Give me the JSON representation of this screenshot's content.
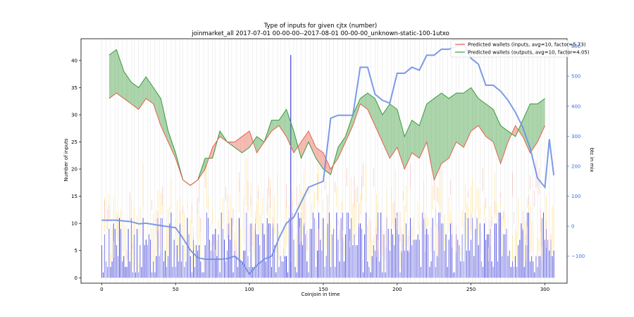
{
  "chart_data": {
    "type": "line",
    "title": "Type of inputs for given cjtx (number)",
    "subtitle": "joinmarket_all 2017-07-01 00-00-00--2017-08-01 00-00-00_unknown-static-100-1utxo",
    "xlabel": "Coinjoin in time",
    "ylabel": "Number of inputs",
    "ylabel_right": "btc in mix",
    "xlim": [
      -14,
      315
    ],
    "ylim": [
      -1,
      44
    ],
    "ylim_right": [
      -190,
      625
    ],
    "x_ticks": [
      0,
      50,
      100,
      150,
      200,
      250,
      300
    ],
    "y_ticks": [
      0,
      5,
      10,
      15,
      20,
      25,
      30,
      35,
      40
    ],
    "y_ticks_right": [
      -100,
      0,
      100,
      200,
      300,
      400,
      500,
      600
    ],
    "y_ticks_right_labels": [
      "−100",
      "0",
      "100",
      "200",
      "300",
      "400",
      "500",
      "600"
    ],
    "right_axis_color": "#4169e1",
    "grid": "vertical lines at selected coinjoins",
    "legend_position": "top-right",
    "series": [
      {
        "name": "Predicted wallets (inputs, avg=10, factor=5.73)",
        "color": "#e8604c",
        "x": [
          5,
          10,
          15,
          20,
          25,
          30,
          35,
          40,
          45,
          50,
          55,
          60,
          65,
          70,
          75,
          80,
          85,
          90,
          95,
          100,
          105,
          110,
          115,
          120,
          125,
          130,
          135,
          140,
          145,
          150,
          155,
          160,
          165,
          170,
          175,
          180,
          185,
          190,
          195,
          200,
          205,
          210,
          215,
          220,
          225,
          230,
          235,
          240,
          245,
          250,
          255,
          260,
          265,
          270,
          275,
          280,
          285,
          290,
          295,
          300
        ],
        "values": [
          33,
          34,
          33,
          32,
          31,
          33,
          32,
          28,
          25,
          22,
          18,
          17,
          18,
          20,
          24,
          26,
          25,
          25,
          26,
          27,
          23,
          25,
          27,
          28,
          26,
          23,
          25,
          27,
          24,
          23,
          20,
          22,
          25,
          28,
          32,
          31,
          28,
          25,
          22,
          24,
          20,
          23,
          22,
          25,
          18,
          21,
          22,
          25,
          24,
          27,
          28,
          26,
          25,
          21,
          25,
          28,
          26,
          23,
          25,
          28
        ]
      },
      {
        "name": "Predicted wallets (outputs, avg=10, factor=4.05)",
        "color": "#3a9a3a",
        "x": [
          5,
          10,
          15,
          20,
          25,
          30,
          35,
          40,
          45,
          50,
          55,
          60,
          65,
          70,
          75,
          80,
          85,
          90,
          95,
          100,
          105,
          110,
          115,
          120,
          125,
          130,
          135,
          140,
          145,
          150,
          155,
          160,
          165,
          170,
          175,
          180,
          185,
          190,
          195,
          200,
          205,
          210,
          215,
          220,
          225,
          230,
          235,
          240,
          245,
          250,
          255,
          260,
          265,
          270,
          275,
          280,
          285,
          290,
          295,
          300
        ],
        "values": [
          41,
          42,
          38,
          36,
          35,
          37,
          35,
          33,
          27,
          23,
          18,
          17,
          18,
          22,
          22,
          27,
          25,
          24,
          23,
          24,
          26,
          25,
          29,
          29,
          31,
          27,
          22,
          25,
          22,
          20,
          19,
          24,
          26,
          30,
          33,
          34,
          33,
          30,
          32,
          31,
          26,
          29,
          28,
          32,
          33,
          34,
          33,
          34,
          34,
          35,
          33,
          32,
          31,
          28,
          27,
          26,
          29,
          32,
          32,
          33
        ]
      },
      {
        "name": "",
        "axis": "right",
        "color": "#6e8fe6",
        "x": [
          0,
          10,
          20,
          25,
          30,
          40,
          50,
          55,
          60,
          65,
          70,
          80,
          85,
          90,
          95,
          100,
          105,
          110,
          115,
          120,
          125,
          130,
          135,
          140,
          145,
          150,
          155,
          160,
          170,
          175,
          180,
          185,
          190,
          195,
          200,
          205,
          210,
          215,
          220,
          225,
          230,
          235,
          240,
          245,
          250,
          255,
          260,
          265,
          270,
          275,
          280,
          285,
          290,
          295,
          300,
          303,
          306
        ],
        "values": [
          20,
          20,
          15,
          8,
          10,
          2,
          -5,
          -40,
          -80,
          -105,
          -110,
          -110,
          -108,
          -100,
          -120,
          -160,
          -130,
          -110,
          -100,
          -40,
          10,
          30,
          80,
          130,
          140,
          150,
          360,
          370,
          370,
          530,
          530,
          440,
          420,
          410,
          510,
          510,
          530,
          520,
          570,
          570,
          590,
          590,
          600,
          610,
          560,
          540,
          470,
          470,
          450,
          420,
          380,
          330,
          260,
          160,
          130,
          290,
          170
        ]
      }
    ],
    "bars": {
      "description": "per-coinjoin input-type bars behind the lines",
      "colors": [
        "#0000cd",
        "#ffd966",
        "#f4a6a6"
      ]
    }
  }
}
